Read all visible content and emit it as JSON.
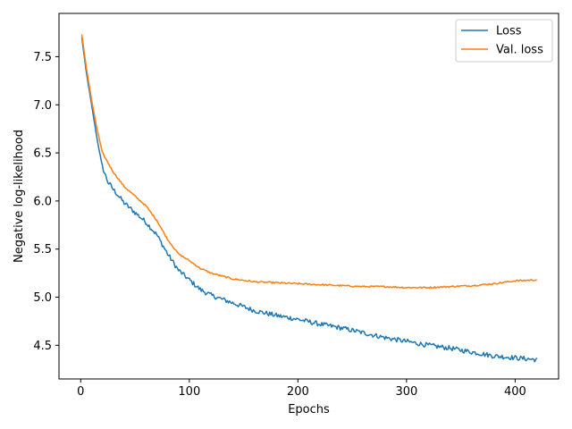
{
  "chart_data": {
    "type": "line",
    "title": "",
    "xlabel": "Epochs",
    "ylabel": "Negative log-likelihood",
    "xlim": [
      -20,
      440
    ],
    "ylim": [
      4.15,
      7.95
    ],
    "xticks": [
      0,
      100,
      200,
      300,
      400
    ],
    "yticks": [
      4.5,
      5.0,
      5.5,
      6.0,
      6.5,
      7.0,
      7.5
    ],
    "ytick_labels": [
      "4.5",
      "5.0",
      "5.5",
      "6.0",
      "6.5",
      "7.0",
      "7.5"
    ],
    "grid": false,
    "legend_position": "top-right",
    "series": [
      {
        "name": "Loss",
        "color": "#1f77b4",
        "noise": 0.025,
        "x": [
          1,
          5,
          10,
          15,
          20,
          25,
          30,
          40,
          50,
          60,
          70,
          80,
          90,
          100,
          110,
          120,
          140,
          160,
          180,
          200,
          220,
          240,
          260,
          280,
          300,
          320,
          340,
          360,
          380,
          400,
          420
        ],
        "y": [
          7.7,
          7.35,
          7.0,
          6.65,
          6.35,
          6.2,
          6.12,
          5.98,
          5.88,
          5.78,
          5.65,
          5.45,
          5.28,
          5.18,
          5.08,
          5.02,
          4.94,
          4.86,
          4.81,
          4.77,
          4.72,
          4.68,
          4.63,
          4.58,
          4.54,
          4.5,
          4.47,
          4.43,
          4.39,
          4.37,
          4.35
        ]
      },
      {
        "name": "Val. loss",
        "color": "#ff7f0e",
        "noise": 0.008,
        "x": [
          1,
          5,
          10,
          15,
          20,
          25,
          30,
          40,
          50,
          60,
          70,
          80,
          90,
          100,
          110,
          120,
          140,
          160,
          180,
          200,
          220,
          240,
          260,
          280,
          300,
          320,
          340,
          360,
          380,
          400,
          420
        ],
        "y": [
          7.73,
          7.4,
          7.05,
          6.75,
          6.5,
          6.4,
          6.3,
          6.15,
          6.05,
          5.95,
          5.8,
          5.6,
          5.45,
          5.38,
          5.3,
          5.25,
          5.19,
          5.16,
          5.15,
          5.14,
          5.13,
          5.12,
          5.11,
          5.11,
          5.1,
          5.1,
          5.11,
          5.12,
          5.14,
          5.17,
          5.18
        ]
      }
    ]
  }
}
